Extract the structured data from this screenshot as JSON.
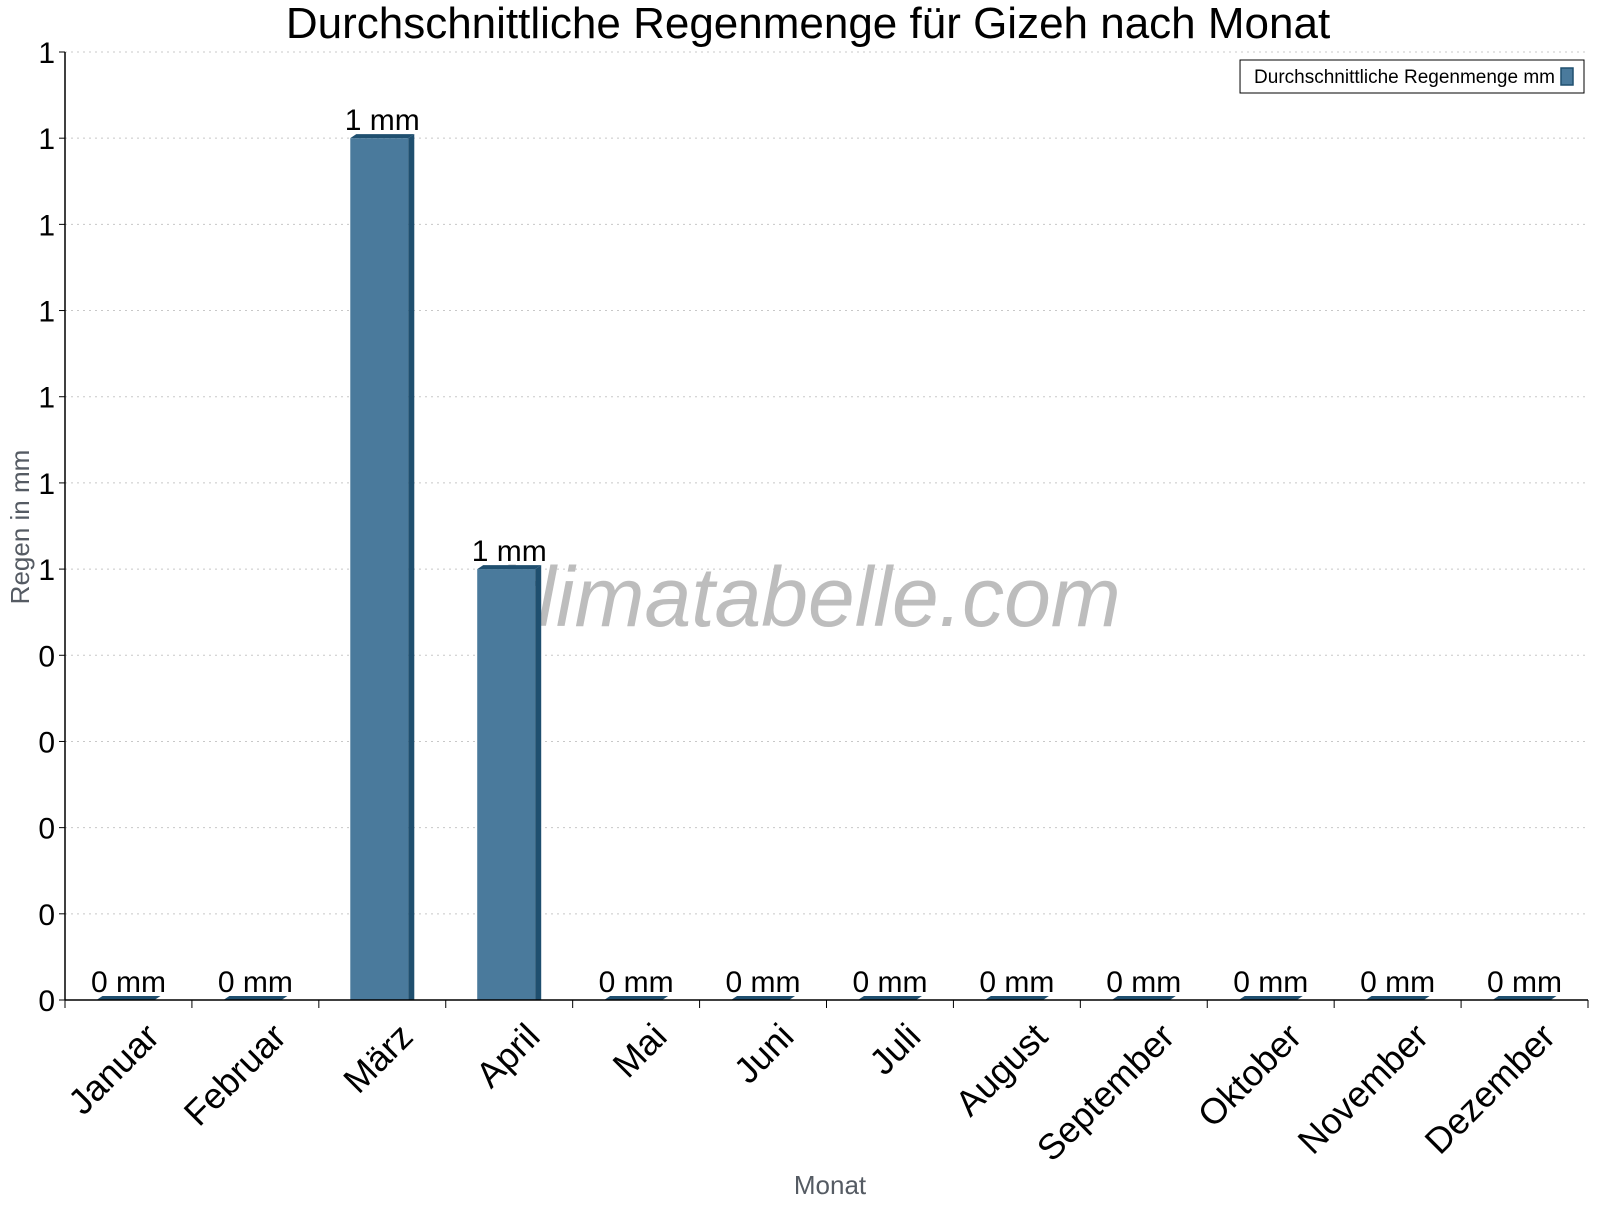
{
  "chart_data": {
    "type": "bar",
    "title": "Durchschnittliche Regenmenge für Gizeh nach Monat",
    "xlabel": "Monat",
    "ylabel": "Regen in mm",
    "categories": [
      "Januar",
      "Februar",
      "März",
      "April",
      "Mai",
      "Juni",
      "Juli",
      "August",
      "September",
      "Oktober",
      "November",
      "Dezember"
    ],
    "series": [
      {
        "name": "Durchschnittliche Regenmenge mm",
        "values": [
          0,
          0,
          1,
          0.5,
          0,
          0,
          0,
          0,
          0,
          0,
          0,
          0
        ],
        "data_labels": [
          "0 mm",
          "0 mm",
          "1 mm",
          "1 mm",
          "0 mm",
          "0 mm",
          "0 mm",
          "0 mm",
          "0 mm",
          "0 mm",
          "0 mm",
          "0 mm"
        ]
      }
    ],
    "ylim": [
      0,
      1.1
    ],
    "yticks": [
      0,
      0.1,
      0.2,
      0.3,
      0.4,
      0.5,
      0.6,
      0.7,
      0.8,
      0.9,
      1.0,
      1.1
    ],
    "ytick_labels": [
      "0",
      "0",
      "0",
      "0",
      "0",
      "1",
      "1",
      "1",
      "1",
      "1",
      "1",
      "1"
    ],
    "grid": true,
    "legend_position": "top-right",
    "watermark": "klimatabelle.com",
    "colors": {
      "bar": "#4a7a9c",
      "bar_side": "#1f4f6f",
      "grid": "#c8c8c8"
    }
  }
}
